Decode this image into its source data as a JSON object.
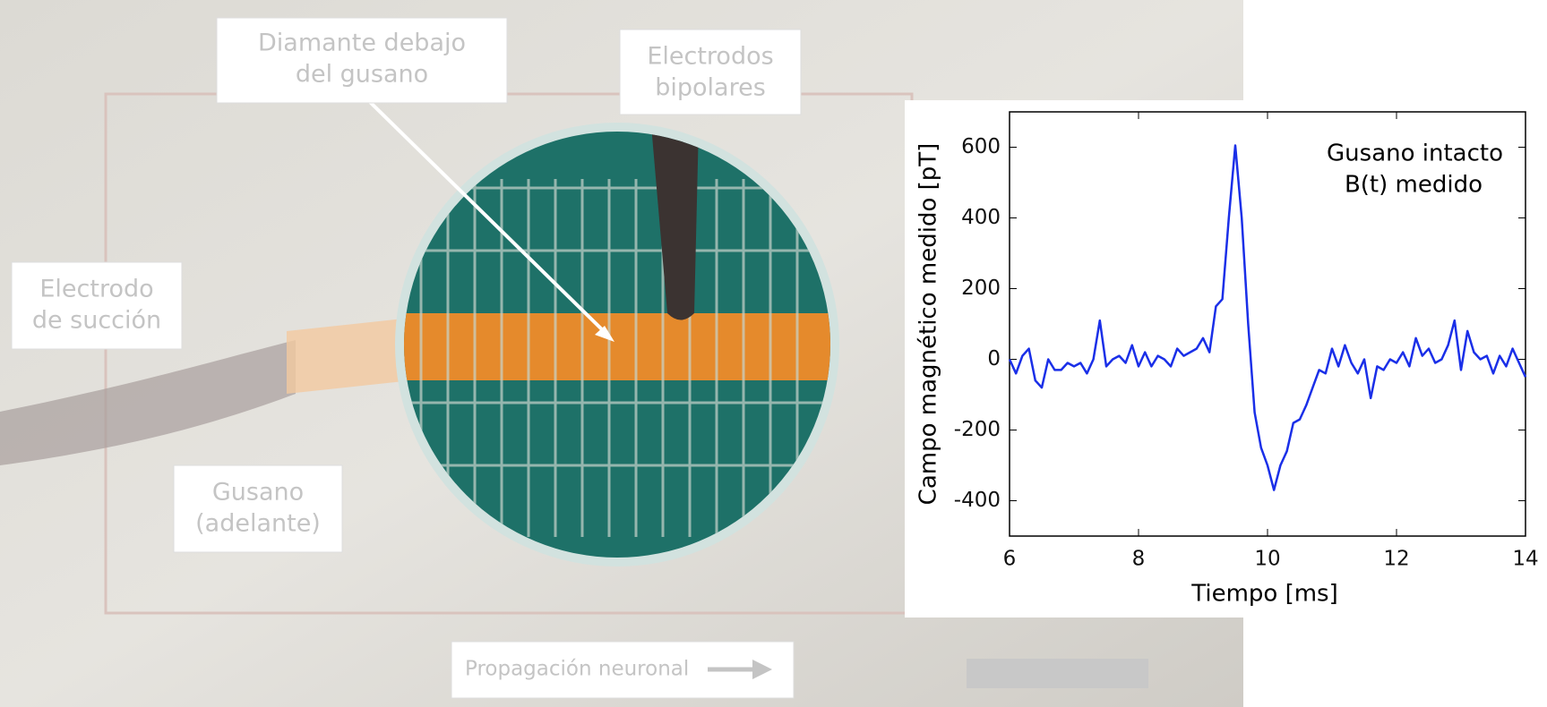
{
  "photo_labels": {
    "diamond": [
      "Diamante debajo",
      "del gusano"
    ],
    "electrodes": [
      "Electrodos",
      "bipolares"
    ],
    "suction": [
      "Electrodo",
      "de succión"
    ],
    "worm": [
      "Gusano",
      "(adelante)"
    ],
    "propagation": "Propagación neuronal"
  },
  "chart_data": {
    "type": "line",
    "annotation": [
      "Gusano intacto",
      "B(t) medido"
    ],
    "x_label": "Tiempo [ms]",
    "y_label": "Campo magnético medido [pT]",
    "x": [
      6.0,
      6.1,
      6.2,
      6.3,
      6.4,
      6.5,
      6.6,
      6.7,
      6.8,
      6.9,
      7.0,
      7.1,
      7.2,
      7.3,
      7.4,
      7.5,
      7.6,
      7.7,
      7.8,
      7.9,
      8.0,
      8.1,
      8.2,
      8.3,
      8.4,
      8.5,
      8.6,
      8.7,
      8.8,
      8.9,
      9.0,
      9.1,
      9.2,
      9.3,
      9.4,
      9.5,
      9.6,
      9.7,
      9.8,
      9.9,
      10.0,
      10.1,
      10.2,
      10.3,
      10.4,
      10.5,
      10.6,
      10.7,
      10.8,
      10.9,
      11.0,
      11.1,
      11.2,
      11.3,
      11.4,
      11.5,
      11.6,
      11.7,
      11.8,
      11.9,
      12.0,
      12.1,
      12.2,
      12.3,
      12.4,
      12.5,
      12.6,
      12.7,
      12.8,
      12.9,
      13.0,
      13.1,
      13.2,
      13.3,
      13.4,
      13.5,
      13.6,
      13.7,
      13.8,
      13.9,
      14.0
    ],
    "series": [
      {
        "color": "#1a2fe8",
        "values": [
          0,
          -40,
          10,
          30,
          -60,
          -80,
          0,
          -30,
          -30,
          -10,
          -20,
          -10,
          -40,
          0,
          110,
          -20,
          0,
          10,
          -10,
          40,
          -20,
          20,
          -20,
          10,
          0,
          -20,
          30,
          10,
          20,
          30,
          60,
          20,
          150,
          170,
          400,
          605,
          400,
          100,
          -150,
          -250,
          -300,
          -370,
          -300,
          -260,
          -180,
          -170,
          -130,
          -80,
          -30,
          -40,
          30,
          -20,
          40,
          -10,
          -40,
          0,
          -110,
          -20,
          -30,
          0,
          -10,
          20,
          -20,
          60,
          10,
          30,
          -10,
          0,
          40,
          110,
          -30,
          80,
          20,
          0,
          10,
          -40,
          10,
          -20,
          30,
          -10,
          -50
        ]
      }
    ],
    "xlim": [
      6,
      14
    ],
    "xticks": [
      6,
      8,
      10,
      12,
      14
    ],
    "ylim": [
      -500,
      700
    ],
    "yticks": [
      -400,
      -200,
      0,
      200,
      400,
      600
    ]
  }
}
